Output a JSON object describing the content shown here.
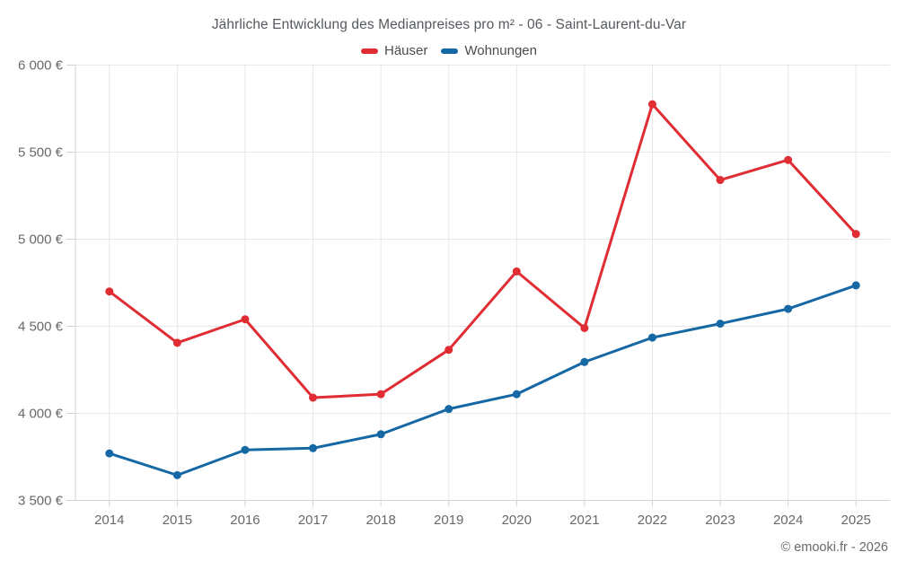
{
  "title": "Jährliche Entwicklung des Medianpreises pro m² - 06 - Saint-Laurent-du-Var",
  "copyright": "© emooki.fr - 2026",
  "chart_data": {
    "type": "line",
    "title": "Jährliche Entwicklung des Medianpreises pro m² - 06 - Saint-Laurent-du-Var",
    "categories": [
      "2014",
      "2015",
      "2016",
      "2017",
      "2018",
      "2019",
      "2020",
      "2021",
      "2022",
      "2023",
      "2024",
      "2025"
    ],
    "series": [
      {
        "name": "Häuser",
        "color": "#e02c33",
        "values": [
          4700,
          4405,
          4540,
          4090,
          4110,
          4365,
          4815,
          4490,
          5775,
          5340,
          5455,
          5030
        ]
      },
      {
        "name": "Wohnungen",
        "color": "#1568a4",
        "values": [
          3770,
          3645,
          3790,
          3800,
          3880,
          4025,
          4110,
          4295,
          4435,
          4515,
          4600,
          4735
        ]
      }
    ],
    "xlabel": "",
    "ylabel": "",
    "ylim": [
      3500,
      6000
    ],
    "y_ticks": [
      {
        "value": 6000,
        "label": "6 000 €"
      },
      {
        "value": 5500,
        "label": "5 500 €"
      },
      {
        "value": 5000,
        "label": "5 000 €"
      },
      {
        "value": 4500,
        "label": "4 500 €"
      },
      {
        "value": 4000,
        "label": "4 000 €"
      },
      {
        "value": 3500,
        "label": "3 500 €"
      }
    ],
    "grid": true,
    "legend_position": "top",
    "marker": "circle"
  },
  "style_colors": {
    "grid": "#e7e7e7",
    "axis": "#cfd2d6",
    "tick_text": "#66696c"
  }
}
